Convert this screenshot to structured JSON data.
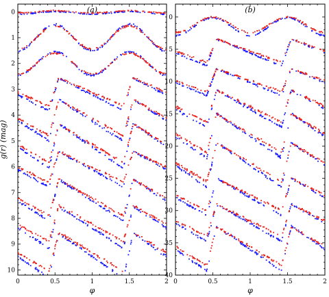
{
  "chart_data": [
    {
      "type": "scatter",
      "panel_label": "(a)",
      "xlabel": "φ",
      "ylabel": "g(r) (mag)",
      "xlim": [
        0,
        2
      ],
      "ylim": [
        10.2,
        -0.3
      ],
      "y_inverted": true,
      "xticks": [
        "0",
        "0.5",
        "1",
        "1.5",
        "2"
      ],
      "yticks": [
        "0",
        "1",
        "2",
        "3",
        "4",
        "5",
        "6",
        "7",
        "8",
        "9",
        "10"
      ],
      "series_colors": {
        "g": "#1a1aff",
        "r": "#e8201a"
      },
      "curves": [
        {
          "base": 0.0,
          "amp": 0.09,
          "offset": 0.04,
          "shape": "flat"
        },
        {
          "base": 1.0,
          "amp": 0.45,
          "offset": 0.0,
          "shape": "sine"
        },
        {
          "base": 2.0,
          "amp": 0.4,
          "offset": 0.0,
          "shape": "sine"
        },
        {
          "base": 3.1,
          "amp": 0.55,
          "offset": 0.1,
          "shape": "saw"
        },
        {
          "base": 4.1,
          "amp": 0.7,
          "offset": 0.1,
          "shape": "saw"
        },
        {
          "base": 5.1,
          "amp": 0.75,
          "offset": 0.1,
          "shape": "saw"
        },
        {
          "base": 6.0,
          "amp": 0.6,
          "offset": 0.1,
          "shape": "saw"
        },
        {
          "base": 7.2,
          "amp": 0.7,
          "offset": 0.1,
          "shape": "saw"
        },
        {
          "base": 8.2,
          "amp": 0.7,
          "offset": 0.15,
          "shape": "saw"
        },
        {
          "base": 9.3,
          "amp": 0.75,
          "offset": 0.15,
          "shape": "saw"
        }
      ]
    },
    {
      "type": "scatter",
      "panel_label": "(b)",
      "xlabel": "φ",
      "ylabel": "",
      "xlim": [
        0,
        2
      ],
      "ylim": [
        40,
        -2
      ],
      "y_inverted": true,
      "xticks": [
        "0",
        "0.5",
        "1",
        "1.5",
        "2"
      ],
      "yticks": [
        "0",
        "5",
        "10",
        "15",
        "20",
        "25",
        "30",
        "35",
        "40"
      ],
      "series_colors": {
        "g": "#1a1aff",
        "r": "#e8201a"
      },
      "curves": [
        {
          "base": 1.2,
          "amp": 1.2,
          "offset": 0.3,
          "shape": "sine"
        },
        {
          "base": 5.2,
          "amp": 1.8,
          "offset": 0.3,
          "shape": "saw"
        },
        {
          "base": 9.8,
          "amp": 1.8,
          "offset": 0.3,
          "shape": "saw"
        },
        {
          "base": 13.8,
          "amp": 2.5,
          "offset": 0.4,
          "shape": "saw"
        },
        {
          "base": 18.0,
          "amp": 3.0,
          "offset": 0.4,
          "shape": "saw"
        },
        {
          "base": 22.5,
          "amp": 3.0,
          "offset": 0.4,
          "shape": "saw"
        },
        {
          "base": 27.5,
          "amp": 2.5,
          "offset": 0.4,
          "shape": "saw"
        },
        {
          "base": 31.5,
          "amp": 2.5,
          "offset": 0.4,
          "shape": "saw"
        },
        {
          "base": 35.5,
          "amp": 3.0,
          "offset": 0.4,
          "shape": "saw"
        }
      ]
    }
  ]
}
